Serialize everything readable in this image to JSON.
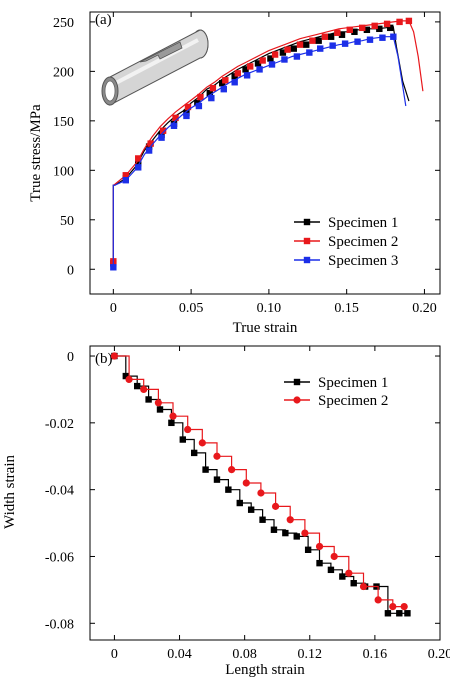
{
  "chart_data": [
    {
      "type": "line",
      "panel_label": "(a)",
      "xlabel": "True strain",
      "ylabel": "True stress/MPa",
      "xlim": [
        -0.015,
        0.21
      ],
      "ylim": [
        -25,
        260
      ],
      "xticks": [
        0,
        0.05,
        0.1,
        0.15,
        0.2
      ],
      "xtick_labels": [
        "0",
        "0.05",
        "0.10",
        "0.15",
        "0.20"
      ],
      "yticks": [
        0,
        50,
        100,
        150,
        200,
        250
      ],
      "ytick_labels": [
        "0",
        "50",
        "100",
        "150",
        "200",
        "250"
      ],
      "legend_position": "bottom-right",
      "inset": "tube-specimen-illustration",
      "series": [
        {
          "name": "Specimen 1",
          "color": "#000000",
          "marker": "square",
          "x": [
            0,
            0,
            0.001,
            0.008,
            0.015,
            0.02,
            0.025,
            0.03,
            0.035,
            0.04,
            0.045,
            0.05,
            0.055,
            0.06,
            0.065,
            0.07,
            0.075,
            0.08,
            0.085,
            0.09,
            0.095,
            0.1,
            0.105,
            0.11,
            0.115,
            0.12,
            0.125,
            0.13,
            0.135,
            0.14,
            0.145,
            0.15,
            0.155,
            0.16,
            0.165,
            0.17,
            0.175,
            0.18,
            0.182,
            0.186,
            0.19
          ],
          "y": [
            6,
            85,
            85,
            92,
            105,
            120,
            130,
            140,
            148,
            155,
            160,
            168,
            174,
            182,
            186,
            192,
            197,
            202,
            206,
            210,
            214,
            218,
            221,
            224,
            227,
            230,
            232,
            234,
            236,
            238,
            240,
            240,
            242,
            242,
            243,
            243,
            244,
            245,
            225,
            190,
            170
          ],
          "marker_x": [
            0,
            0.008,
            0.016,
            0.023,
            0.031,
            0.039,
            0.047,
            0.054,
            0.062,
            0.07,
            0.078,
            0.085,
            0.093,
            0.101,
            0.109,
            0.116,
            0.124,
            0.132,
            0.14,
            0.147,
            0.155,
            0.163,
            0.171,
            0.178
          ],
          "marker_y": [
            6,
            92,
            107,
            124,
            136,
            147,
            158,
            168,
            178,
            188,
            195,
            202,
            208,
            213,
            219,
            223,
            227,
            231,
            235,
            237,
            240,
            242,
            243,
            244
          ]
        },
        {
          "name": "Specimen 2",
          "color": "#e8181c",
          "marker": "square",
          "x": [
            0,
            0,
            0.001,
            0.008,
            0.015,
            0.02,
            0.025,
            0.03,
            0.035,
            0.04,
            0.045,
            0.05,
            0.055,
            0.06,
            0.065,
            0.07,
            0.075,
            0.08,
            0.085,
            0.09,
            0.095,
            0.1,
            0.105,
            0.11,
            0.115,
            0.12,
            0.125,
            0.13,
            0.135,
            0.14,
            0.145,
            0.15,
            0.155,
            0.16,
            0.165,
            0.17,
            0.175,
            0.18,
            0.185,
            0.19,
            0.193,
            0.196,
            0.199
          ],
          "y": [
            8,
            85,
            86,
            95,
            108,
            122,
            134,
            144,
            152,
            159,
            165,
            171,
            177,
            184,
            189,
            195,
            200,
            205,
            209,
            213,
            217,
            221,
            224,
            227,
            230,
            233,
            235,
            237,
            239,
            241,
            243,
            244,
            245,
            246,
            247,
            248,
            249,
            250,
            251,
            251,
            240,
            215,
            180
          ],
          "marker_x": [
            0,
            0.008,
            0.016,
            0.024,
            0.032,
            0.04,
            0.048,
            0.056,
            0.064,
            0.072,
            0.08,
            0.088,
            0.096,
            0.104,
            0.112,
            0.12,
            0.128,
            0.136,
            0.144,
            0.152,
            0.16,
            0.168,
            0.176,
            0.184,
            0.19
          ],
          "marker_y": [
            8,
            95,
            112,
            127,
            140,
            153,
            164,
            174,
            183,
            191,
            198,
            205,
            211,
            217,
            222,
            227,
            231,
            235,
            239,
            242,
            244,
            246,
            248,
            250,
            251
          ]
        },
        {
          "name": "Specimen 3",
          "color": "#1c2fe8",
          "marker": "square",
          "x": [
            0,
            0,
            0.001,
            0.008,
            0.015,
            0.02,
            0.025,
            0.03,
            0.035,
            0.04,
            0.045,
            0.05,
            0.055,
            0.06,
            0.065,
            0.07,
            0.075,
            0.08,
            0.085,
            0.09,
            0.095,
            0.1,
            0.105,
            0.11,
            0.115,
            0.12,
            0.125,
            0.13,
            0.135,
            0.14,
            0.145,
            0.15,
            0.155,
            0.16,
            0.165,
            0.17,
            0.175,
            0.18,
            0.183,
            0.186,
            0.188
          ],
          "y": [
            2,
            85,
            85,
            90,
            102,
            116,
            126,
            135,
            143,
            150,
            157,
            163,
            168,
            174,
            179,
            184,
            189,
            193,
            197,
            200,
            203,
            206,
            209,
            212,
            215,
            217,
            219,
            221,
            223,
            225,
            227,
            228,
            230,
            231,
            233,
            234,
            235,
            235,
            215,
            185,
            165
          ],
          "marker_x": [
            0,
            0.008,
            0.016,
            0.023,
            0.031,
            0.039,
            0.047,
            0.055,
            0.063,
            0.071,
            0.078,
            0.086,
            0.094,
            0.102,
            0.11,
            0.118,
            0.126,
            0.133,
            0.141,
            0.149,
            0.157,
            0.165,
            0.173,
            0.18
          ],
          "marker_y": [
            2,
            90,
            103,
            120,
            133,
            145,
            155,
            165,
            173,
            182,
            189,
            196,
            202,
            207,
            212,
            215,
            219,
            223,
            226,
            228,
            230,
            232,
            234,
            235
          ]
        }
      ]
    },
    {
      "type": "line",
      "panel_label": "(b)",
      "xlabel": "Length strain",
      "ylabel": "Width strain",
      "xlim": [
        -0.015,
        0.2
      ],
      "ylim": [
        -0.085,
        0.003
      ],
      "xticks": [
        0,
        0.04,
        0.08,
        0.12,
        0.16,
        0.2
      ],
      "xtick_labels": [
        "0",
        "0.04",
        "0.08",
        "0.12",
        "0.16",
        "0.20"
      ],
      "yticks": [
        0,
        -0.02,
        -0.04,
        -0.06,
        -0.08
      ],
      "ytick_labels": [
        "0",
        "-0.02",
        "-0.04",
        "-0.06",
        "-0.08"
      ],
      "legend_position": "top-right",
      "series": [
        {
          "name": "Specimen 1",
          "color": "#000000",
          "marker": "square",
          "x": [
            0,
            0.007,
            0.014,
            0.021,
            0.028,
            0.035,
            0.042,
            0.049,
            0.056,
            0.063,
            0.07,
            0.077,
            0.084,
            0.091,
            0.098,
            0.105,
            0.112,
            0.119,
            0.126,
            0.133,
            0.14,
            0.147,
            0.154,
            0.161,
            0.168,
            0.175,
            0.18
          ],
          "y": [
            0,
            -0.006,
            -0.009,
            -0.013,
            -0.016,
            -0.02,
            -0.025,
            -0.029,
            -0.034,
            -0.037,
            -0.04,
            -0.044,
            -0.046,
            -0.049,
            -0.052,
            -0.053,
            -0.054,
            -0.058,
            -0.062,
            -0.064,
            -0.066,
            -0.068,
            -0.069,
            -0.069,
            -0.077,
            -0.077,
            -0.077
          ]
        },
        {
          "name": "Specimen 2",
          "color": "#e8181c",
          "marker": "circle",
          "x": [
            0,
            0.009,
            0.018,
            0.027,
            0.036,
            0.045,
            0.054,
            0.063,
            0.072,
            0.081,
            0.09,
            0.099,
            0.108,
            0.117,
            0.126,
            0.135,
            0.144,
            0.153,
            0.162,
            0.171,
            0.178
          ],
          "y": [
            0,
            -0.007,
            -0.01,
            -0.014,
            -0.018,
            -0.022,
            -0.026,
            -0.03,
            -0.034,
            -0.038,
            -0.041,
            -0.045,
            -0.049,
            -0.053,
            -0.057,
            -0.06,
            -0.065,
            -0.069,
            -0.073,
            -0.075,
            -0.075
          ]
        }
      ]
    }
  ]
}
